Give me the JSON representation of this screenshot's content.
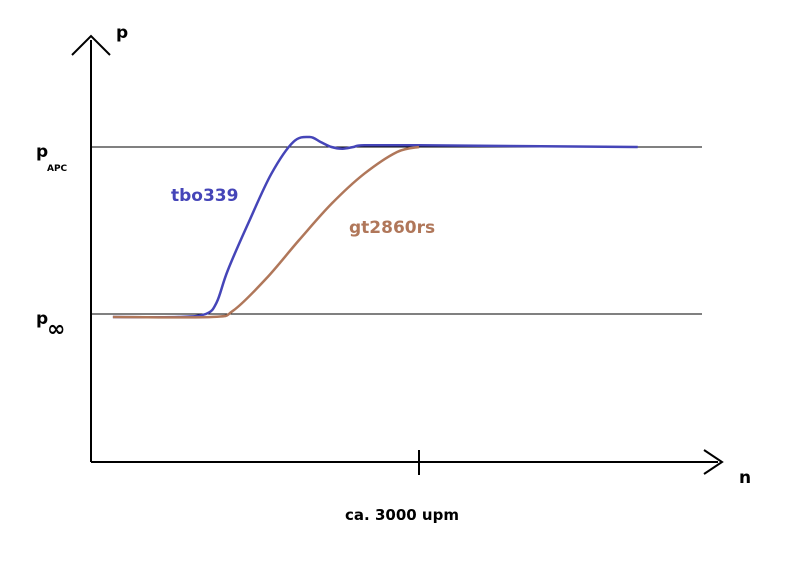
{
  "chart_data": {
    "type": "line",
    "title": "",
    "xlabel": "n",
    "ylabel": "p",
    "xlim": [
      0,
      6
    ],
    "ylim": [
      0,
      2
    ],
    "grid": false,
    "reference_lines": [
      {
        "label_main": "p",
        "label_sub": "APC",
        "y": 1.5
      },
      {
        "label_main": "p",
        "label_sub": "∞",
        "y": 0.5
      }
    ],
    "x_tick": {
      "x": 3.0,
      "label": "ca. 3000 upm"
    },
    "series": [
      {
        "name": "tbo339",
        "color": "#4545b8",
        "x": [
          0.2,
          0.8,
          1.05,
          1.15,
          1.25,
          1.45,
          1.65,
          1.85,
          2.0,
          2.1,
          2.2,
          2.3,
          2.4,
          2.5,
          3.0,
          5.0
        ],
        "y": [
          0.49,
          0.49,
          0.5,
          0.57,
          0.76,
          1.06,
          1.34,
          1.53,
          1.56,
          1.53,
          1.5,
          1.49,
          1.5,
          1.51,
          1.51,
          1.5
        ]
      },
      {
        "name": "gt2860rs",
        "color": "#b0775a",
        "x": [
          0.2,
          1.1,
          1.3,
          1.6,
          1.9,
          2.2,
          2.5,
          2.8,
          3.0
        ],
        "y": [
          0.49,
          0.49,
          0.52,
          0.71,
          0.94,
          1.16,
          1.34,
          1.47,
          1.5
        ]
      }
    ]
  }
}
